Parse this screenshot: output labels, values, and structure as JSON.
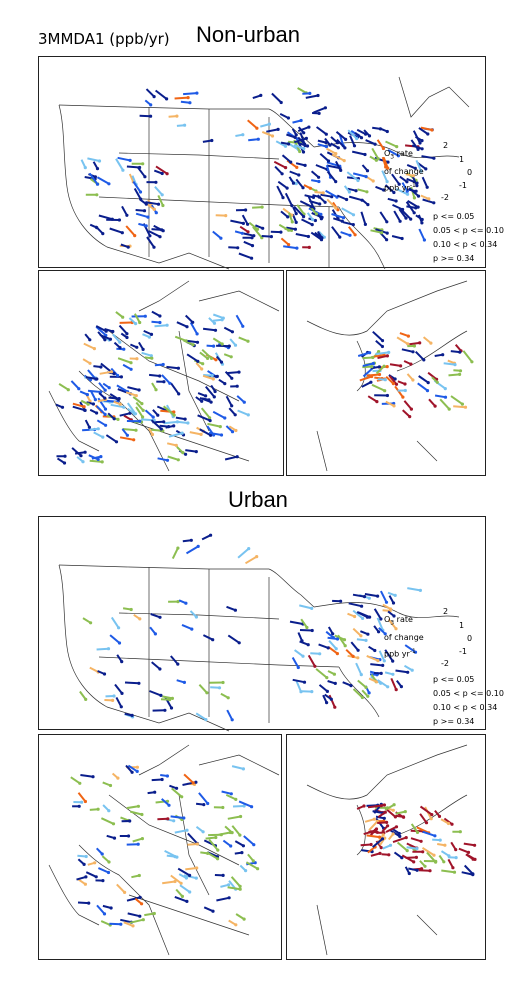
{
  "header": {
    "metric": "3MMDA1 (ppb/yr)",
    "nonurban_title": "Non-urban"
  },
  "urban_title": "Urban",
  "legend": {
    "rate_line1": "O",
    "rate_sub": "3",
    "rate_line1b": " rate",
    "rate_line2": "of change",
    "rate_line3": "ppb yr",
    "rate_sup": "-1",
    "scale": {
      "top": "2",
      "right_up": "1",
      "right": "0",
      "right_down": "-1",
      "bottom": "-2"
    },
    "classes": [
      {
        "label": "p <= 0.05",
        "colors": [
          "#a0142a",
          "#0a1e8c"
        ]
      },
      {
        "label": "0.05 < p <= 0.10",
        "colors": [
          "#f06414",
          "#1e5ae6"
        ]
      },
      {
        "label": "0.10 < p < 0.34",
        "colors": [
          "#f5b464",
          "#78c3f0"
        ]
      },
      {
        "label": "p >= 0.34",
        "colors": [
          "#8cbe50"
        ]
      }
    ]
  }
}
